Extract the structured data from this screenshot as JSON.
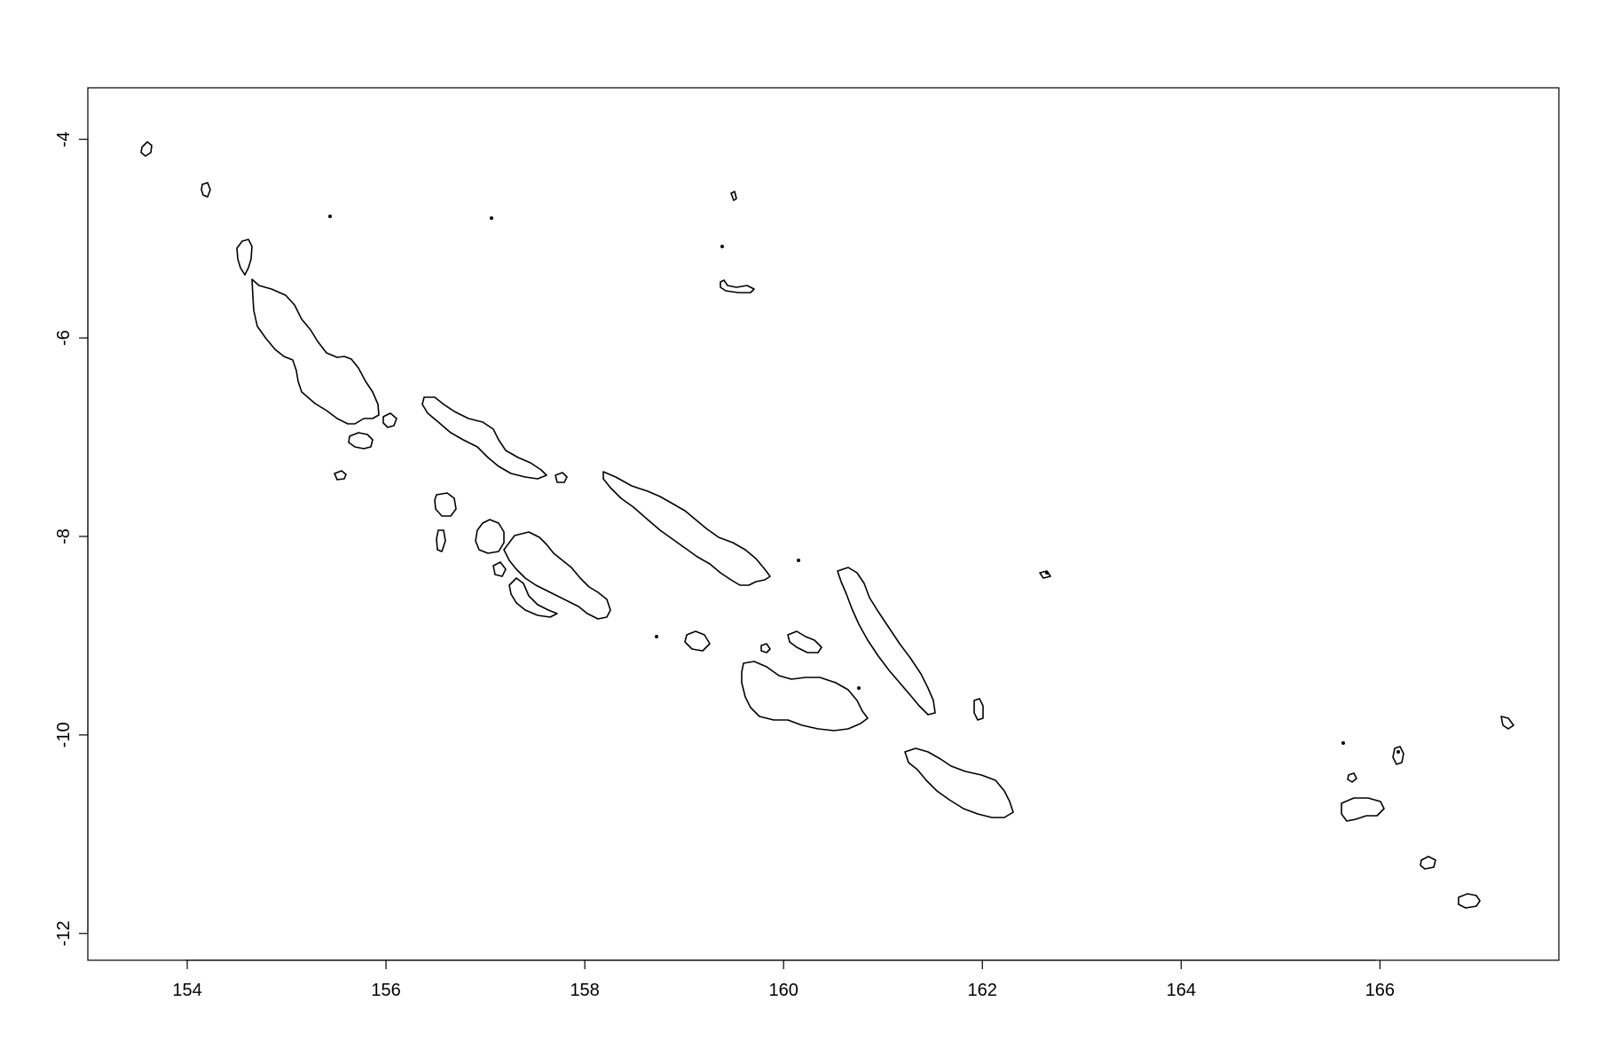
{
  "map": {
    "type": "outline-map",
    "x_axis": {
      "ticks": [
        154,
        156,
        158,
        160,
        162,
        164,
        166
      ],
      "labels": [
        "154",
        "156",
        "158",
        "160",
        "162",
        "164",
        "166"
      ],
      "range": [
        153.0,
        167.8
      ]
    },
    "y_axis": {
      "ticks": [
        -4,
        -6,
        -8,
        -10,
        -12
      ],
      "labels": [
        "-4",
        "-6",
        "-8",
        "-10",
        "-12"
      ],
      "range": [
        -12.27,
        -3.48
      ]
    },
    "line_color": "#000000",
    "background": "#ffffff"
  }
}
